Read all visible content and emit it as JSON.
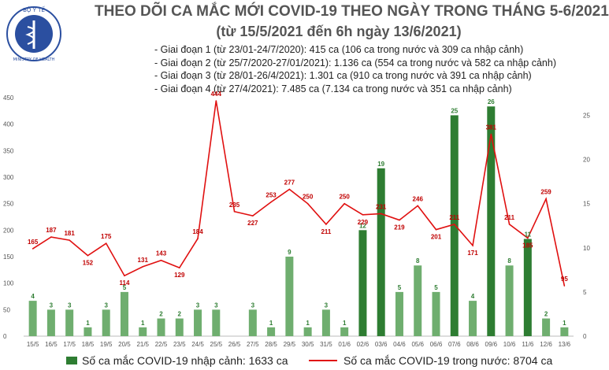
{
  "header": {
    "logo_text": "BỘ Y TẾ · MINISTRY OF HEALTH",
    "title": "THEO DÕI CA MẮC MỚI COVID-19 THEO NGÀY TRONG THÁNG 5-6/2021",
    "subtitle": "(từ 15/5/2021 đến 6h ngày 13/6/2021)",
    "phases": [
      "Giai đoạn 1 (từ 23/01-24/7/2020): 415 ca (106 ca trong nước và 309 ca nhập cảnh)",
      "Giai đoạn 2 (từ 25/7/2020-27/01/2021): 1.136 ca (554 ca trong nước và 582 ca nhập cảnh)",
      "Giai đoạn 3 (từ 28/01-26/4/2021): 1.301 ca (910 ca trong nước và 391 ca nhập cảnh)",
      "Giai đoạn 4 (từ 27/4/2021): 7.485 ca (7.134 ca trong nước và 351 ca nhập cảnh)"
    ]
  },
  "colors": {
    "bar": "#2e7d32",
    "bar_light": "#6fae6f",
    "line": "#e01010",
    "axis_text": "#555555",
    "grid": "#e6e6e6"
  },
  "chart_data": {
    "type": "bar+line",
    "categories": [
      "15/5",
      "16/5",
      "17/5",
      "18/5",
      "19/5",
      "20/5",
      "21/5",
      "22/5",
      "23/5",
      "24/5",
      "25/5",
      "26/5",
      "27/5",
      "28/5",
      "29/5",
      "30/5",
      "31/5",
      "01/6",
      "02/6",
      "03/6",
      "04/6",
      "05/6",
      "06/6",
      "07/6",
      "08/6",
      "09/6",
      "10/6",
      "11/6",
      "12/6",
      "13/6"
    ],
    "series": [
      {
        "name": "Số ca mắc COVID-19 nhập cảnh: 1633 ca",
        "kind": "bar",
        "axis": "right",
        "values": [
          4,
          3,
          3,
          1,
          3,
          5,
          1,
          2,
          2,
          3,
          3,
          null,
          3,
          1,
          9,
          1,
          3,
          1,
          12,
          19,
          5,
          8,
          5,
          25,
          4,
          26,
          8,
          11,
          2,
          1
        ]
      },
      {
        "name": "Số ca mắc COVID-19 trong nước: 8704 ca",
        "kind": "line",
        "axis": "left",
        "values": [
          165,
          187,
          181,
          152,
          175,
          114,
          131,
          143,
          129,
          184,
          444,
          235,
          227,
          253,
          277,
          250,
          211,
          250,
          229,
          231,
          219,
          246,
          201,
          211,
          171,
          381,
          211,
          185,
          259,
          95
        ]
      }
    ],
    "left_axis": {
      "ylim": [
        0,
        450
      ],
      "ticks": [
        0,
        50,
        100,
        150,
        200,
        250,
        300,
        350,
        400,
        450
      ]
    },
    "right_axis": {
      "ylim": [
        0,
        27
      ],
      "ticks": [
        0,
        5,
        10,
        15,
        20,
        25
      ]
    },
    "grid": false,
    "legend_placement": "bottom"
  }
}
